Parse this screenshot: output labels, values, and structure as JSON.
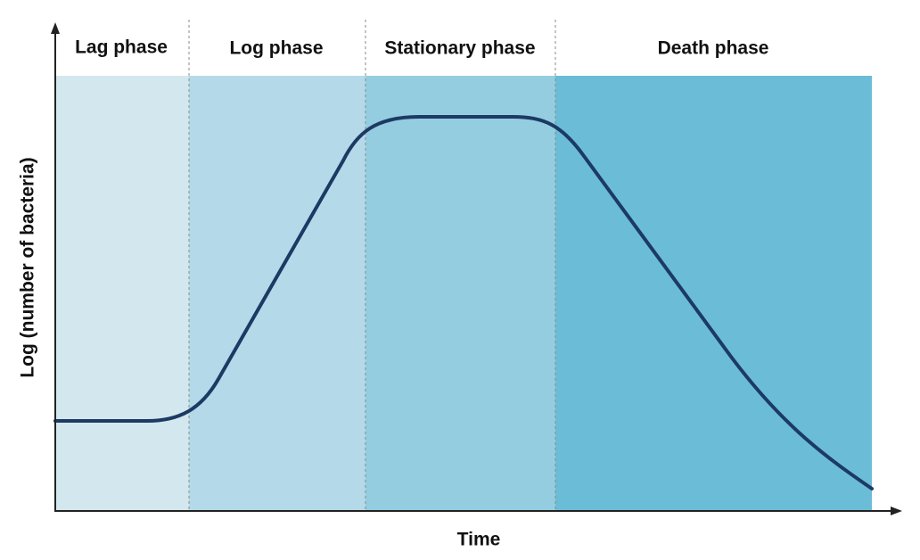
{
  "phases": [
    "Lag phase",
    "Log phase",
    "Stationary phase",
    "Death phase"
  ],
  "y_axis": {
    "label": "Log (number of bacteria)"
  },
  "x_axis": {
    "label": "Time"
  }
}
